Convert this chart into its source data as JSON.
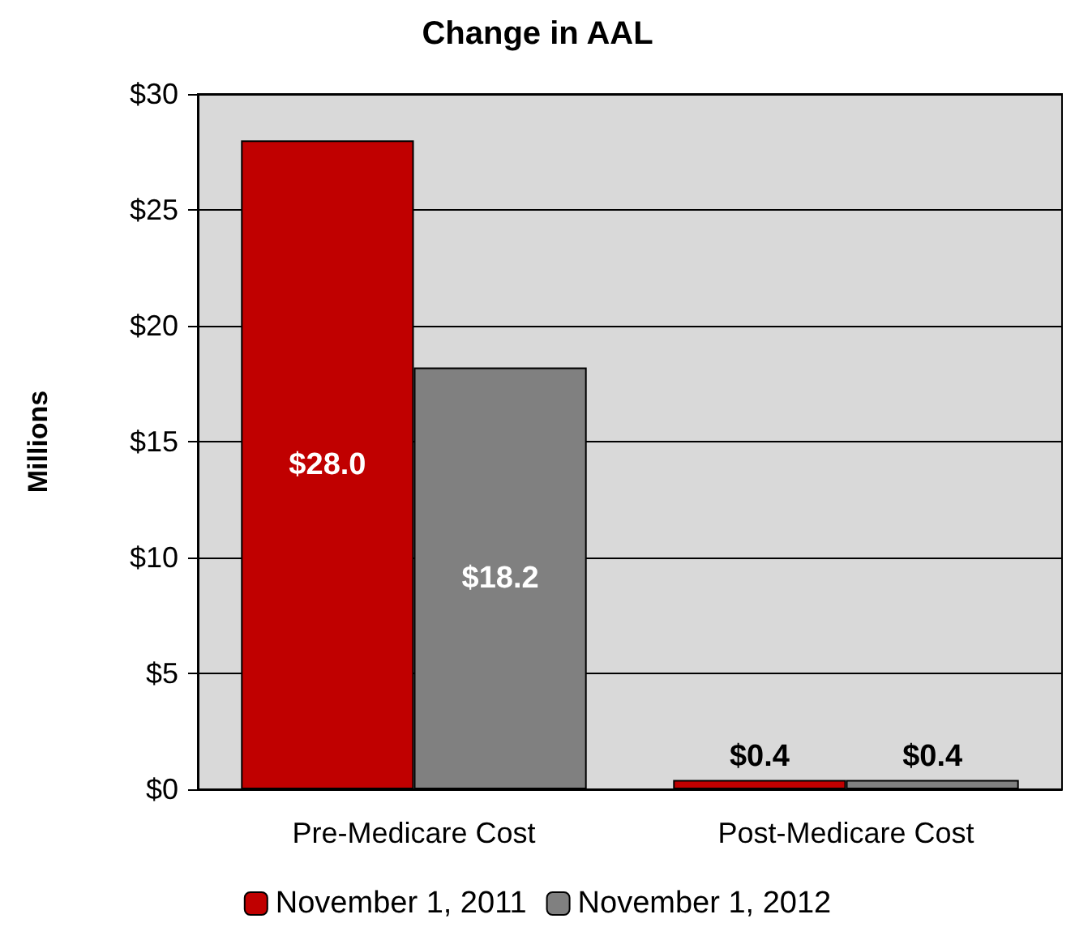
{
  "chart_data": {
    "type": "bar",
    "title": "Change in AAL",
    "ylabel": "Millions",
    "categories": [
      "Pre-Medicare Cost",
      "Post-Medicare Cost"
    ],
    "series": [
      {
        "name": "November 1, 2011",
        "color": "#c00000",
        "values": [
          28.0,
          0.4
        ],
        "value_labels": [
          "$28.0",
          "$0.4"
        ]
      },
      {
        "name": "November 1, 2012",
        "color": "#808080",
        "values": [
          18.2,
          0.4
        ],
        "value_labels": [
          "$18.2",
          "$0.4"
        ]
      }
    ],
    "ylim": [
      0,
      30
    ],
    "yticks": [
      {
        "value": 0,
        "label": "$0"
      },
      {
        "value": 5,
        "label": "$5"
      },
      {
        "value": 10,
        "label": "$10"
      },
      {
        "value": 15,
        "label": "$15"
      },
      {
        "value": 20,
        "label": "$20"
      },
      {
        "value": 25,
        "label": "$25"
      },
      {
        "value": 30,
        "label": "$30"
      }
    ],
    "grid": "y",
    "legend": "bottom"
  }
}
